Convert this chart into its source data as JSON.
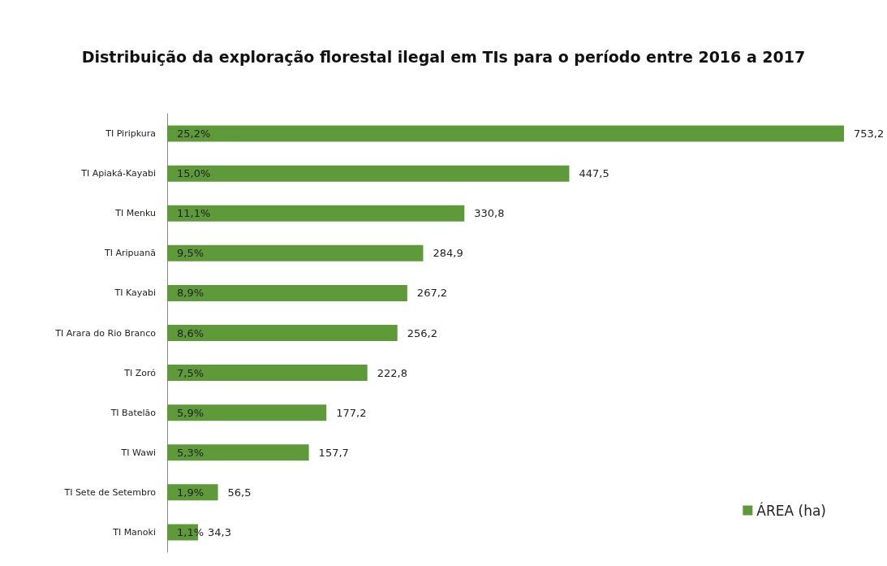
{
  "chart_data": {
    "type": "bar",
    "orientation": "horizontal",
    "title": "Distribuição da exploração florestal ilegal em TIs para o período entre 2016 a 2017",
    "categories": [
      "TI Piripkura",
      "TI Apiaká-Kayabi",
      "TI Menku",
      "TI Aripuanã",
      "TI Kayabi",
      "TI Arara do Rio Branco",
      "TI Zoró",
      "TI Batelão",
      "TI Wawi",
      "TI Sete de Setembro",
      "TI Manoki"
    ],
    "series": [
      {
        "name": "ÁREA (ha)",
        "color": "#5f9a3a",
        "values": [
          753.2,
          447.5,
          330.8,
          284.9,
          267.2,
          256.2,
          222.8,
          177.2,
          157.7,
          56.5,
          34.3
        ],
        "value_labels": [
          "753,2",
          "447,5",
          "330,8",
          "284,9",
          "267,2",
          "256,2",
          "222,8",
          "177,2",
          "157,7",
          "56,5",
          "34,3"
        ]
      }
    ],
    "annotations": [
      "25,2%",
      "15,0%",
      "11,1%",
      "9,5%",
      "8,9%",
      "8,6%",
      "7,5%",
      "5,9%",
      "5,3%",
      "1,9%",
      "1,1%"
    ],
    "legend": "bottom right",
    "grid": false
  }
}
